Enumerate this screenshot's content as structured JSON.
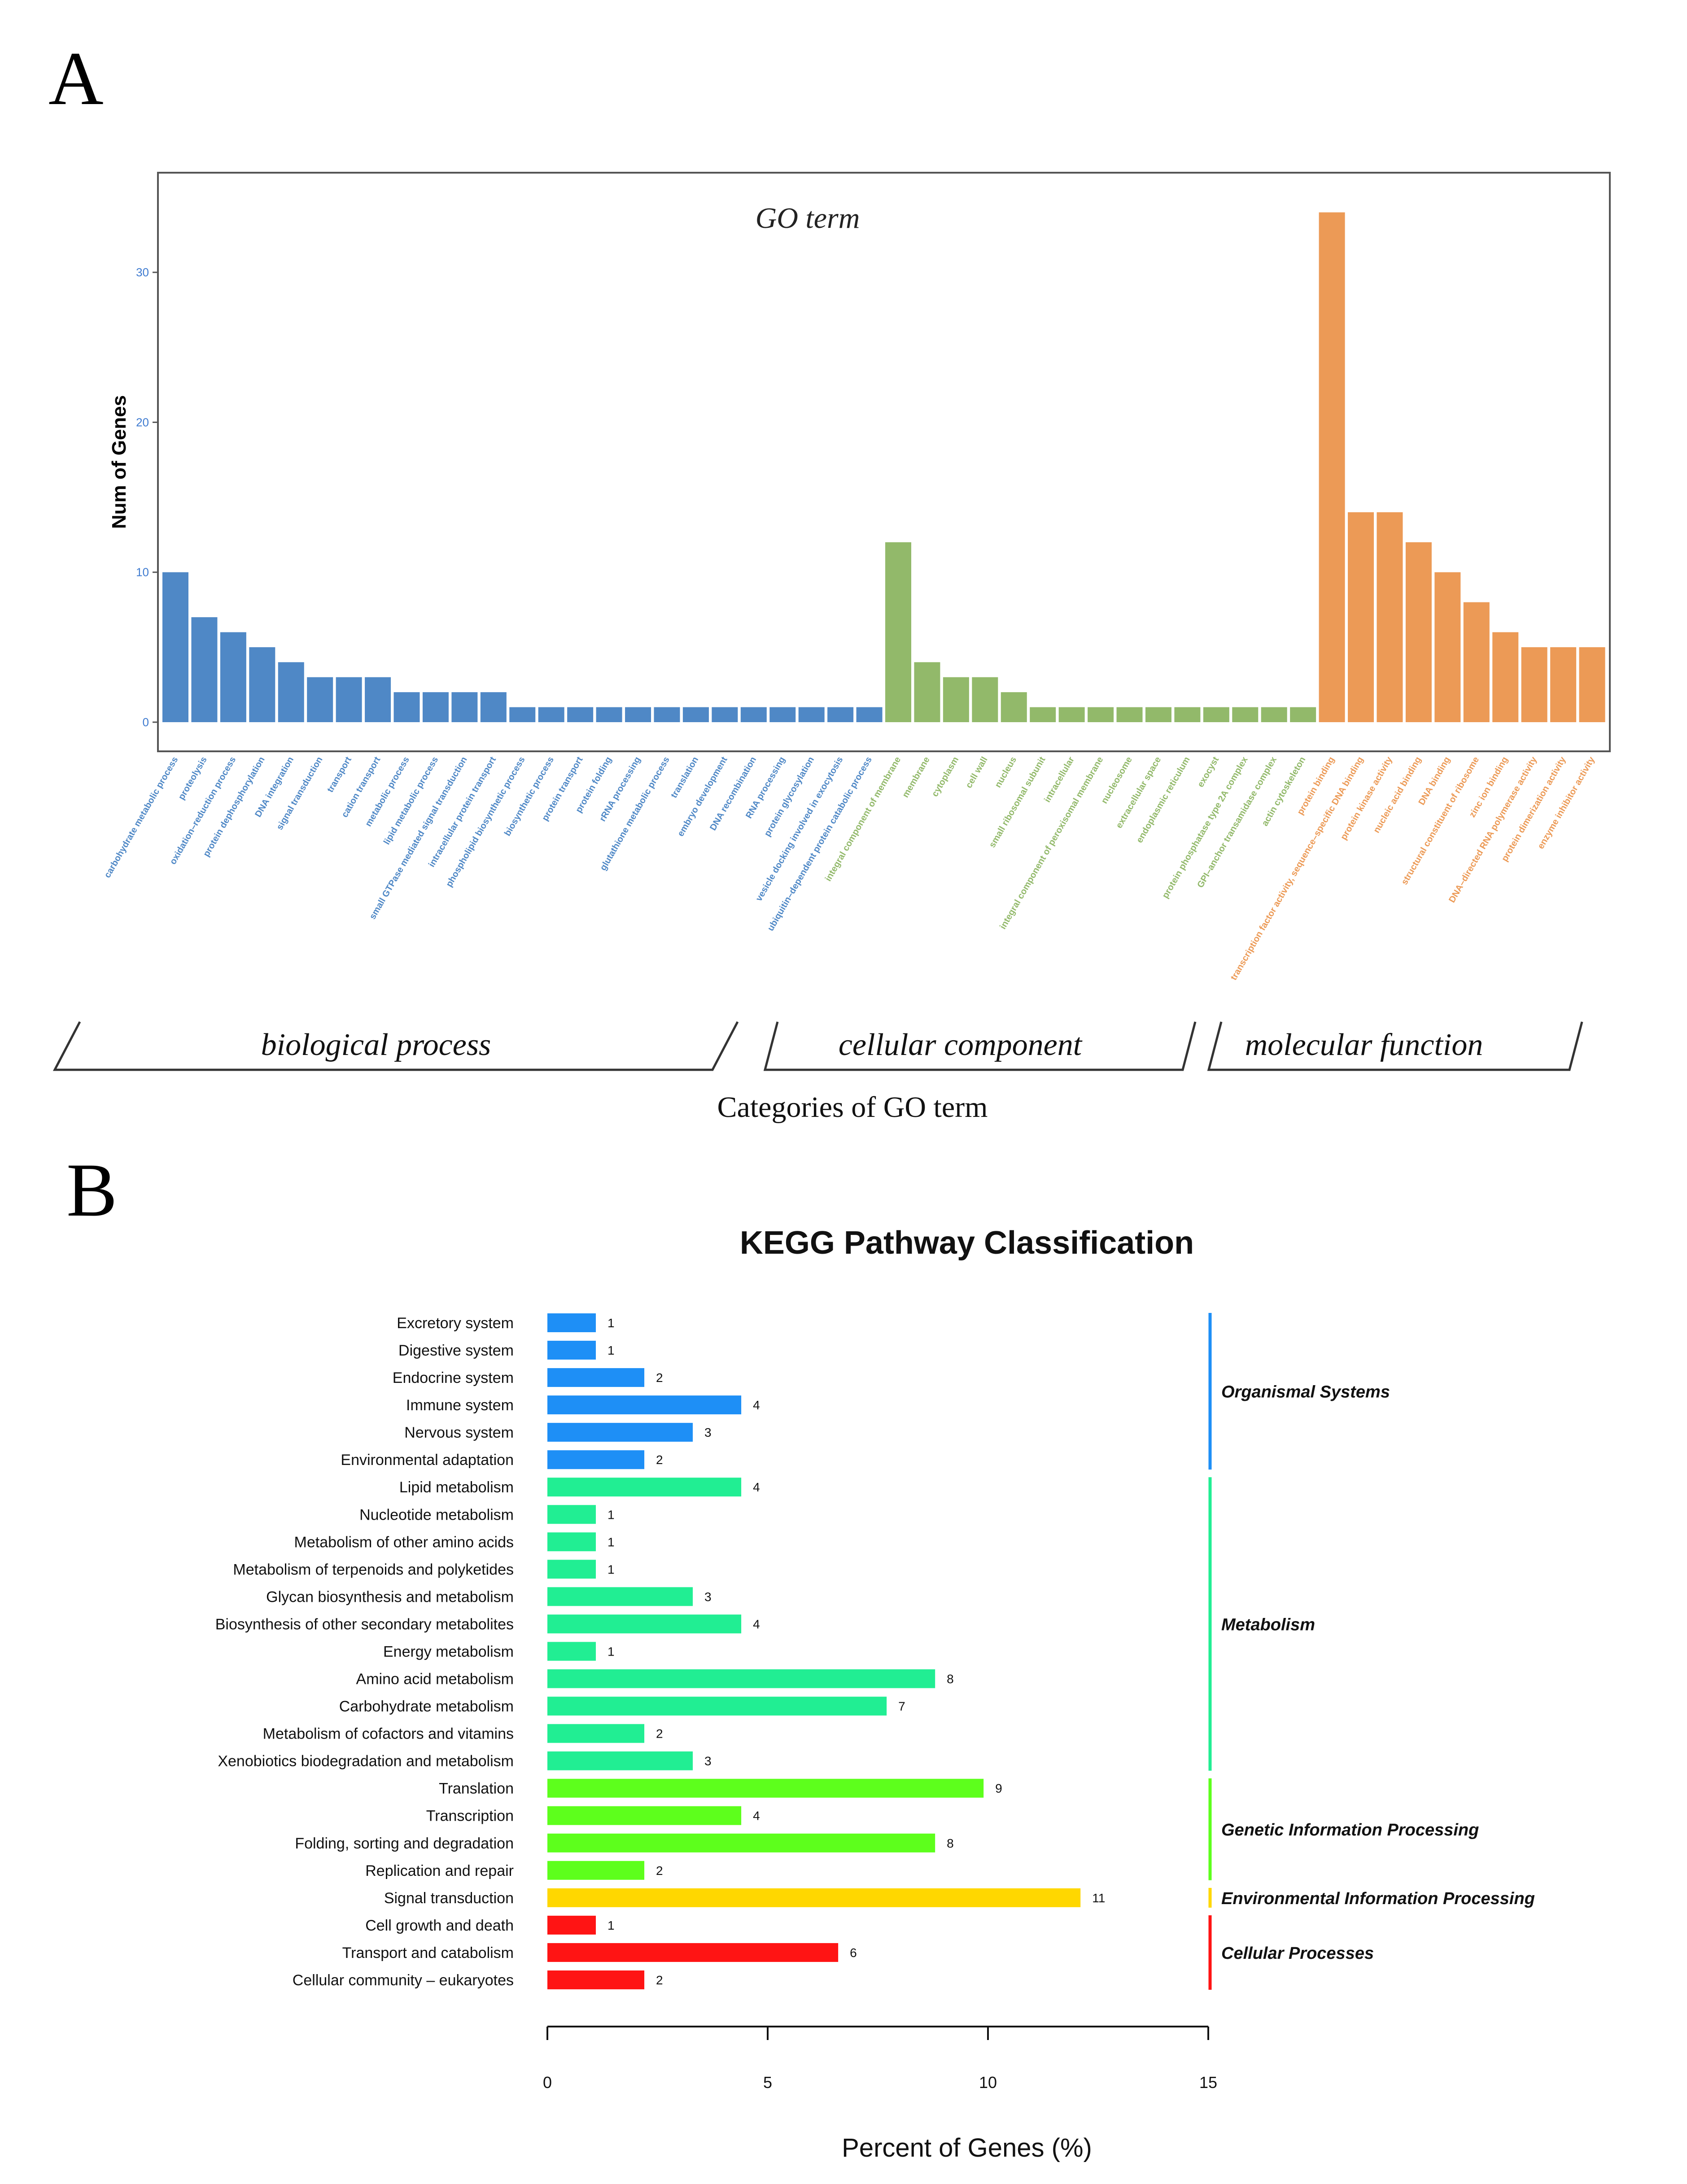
{
  "panel_a": {
    "label": "A",
    "chart_data": {
      "type": "bar",
      "title": "GO term",
      "xlabel": "Categories of GO term",
      "ylabel": "Num of Genes",
      "ylim": [
        0,
        35
      ],
      "yticks": [
        0,
        10,
        20,
        30
      ],
      "grid": false,
      "groups": [
        {
          "name": "biological process",
          "color": "#4f88c6",
          "categories": [
            "carbohydrate metabolic process",
            "proteolysis",
            "oxidation–reduction process",
            "protein dephosphorylation",
            "DNA integration",
            "signal transduction",
            "transport",
            "cation transport",
            "metabolic process",
            "lipid metabolic process",
            "small GTPase mediated signal transduction",
            "intracellular protein transport",
            "phospholipid biosynthetic process",
            "biosynthetic process",
            "protein transport",
            "protein folding",
            "rRNA processing",
            "glutathione metabolic process",
            "translation",
            "embryo development",
            "DNA recombination",
            "RNA processing",
            "protein glycosylation",
            "vesicle docking involved in exocytosis",
            "ubiquitin–dependent protein catabolic process"
          ],
          "values": [
            10,
            7,
            6,
            5,
            4,
            3,
            3,
            3,
            2,
            2,
            2,
            2,
            1,
            1,
            1,
            1,
            1,
            1,
            1,
            1,
            1,
            1,
            1,
            1,
            1
          ]
        },
        {
          "name": "cellular component",
          "color": "#92b96a",
          "categories": [
            "integral component of membrane",
            "membrane",
            "cytoplasm",
            "cell wall",
            "nucleus",
            "small ribosomal subunit",
            "intracellular",
            "integral component of peroxisomal membrane",
            "nucleosome",
            "extracellular space",
            "endoplasmic reticulum",
            "exocyst",
            "protein phosphatase type 2A complex",
            "GPI–anchor transamidase complex",
            "actin cytoskeleton"
          ],
          "values": [
            12,
            4,
            3,
            3,
            2,
            1,
            1,
            1,
            1,
            1,
            1,
            1,
            1,
            1,
            1
          ]
        },
        {
          "name": "molecular function",
          "color": "#ec9a56",
          "categories": [
            "protein binding",
            "transcription factor activity, sequence–specific DNA binding",
            "protein kinase activity",
            "nucleic acid binding",
            "DNA binding",
            "structural constituent of ribosome",
            "zinc ion binding",
            "DNA–directed RNA polymerase activity",
            "protein dimerization activity",
            "enzyme inhibitor activity"
          ],
          "values": [
            34,
            14,
            14,
            12,
            10,
            8,
            6,
            5,
            5,
            5
          ]
        }
      ]
    }
  },
  "panel_b": {
    "label": "B",
    "chart_data": {
      "type": "bar",
      "orientation": "horizontal",
      "title": "KEGG Pathway Classification",
      "xlabel": "Percent of Genes (%)",
      "xlim": [
        0,
        15
      ],
      "xticks": [
        0,
        5,
        10,
        15
      ],
      "grid": false,
      "categories": [
        "Excretory system",
        "Digestive system",
        "Endocrine system",
        "Immune system",
        "Nervous system",
        "Environmental adaptation",
        "Lipid metabolism",
        "Nucleotide metabolism",
        "Metabolism of other amino acids",
        "Metabolism of terpenoids and polyketides",
        "Glycan biosynthesis and metabolism",
        "Biosynthesis of other secondary metabolites",
        "Energy metabolism",
        "Amino acid metabolism",
        "Carbohydrate metabolism",
        "Metabolism of cofactors and vitamins",
        "Xenobiotics biodegradation and metabolism",
        "Translation",
        "Transcription",
        "Folding, sorting and degradation",
        "Replication and repair",
        "Signal transduction",
        "Cell growth and death",
        "Transport and catabolism",
        "Cellular community – eukaryotes"
      ],
      "values": [
        1.1,
        1.1,
        2.2,
        4.4,
        3.3,
        2.2,
        4.4,
        1.1,
        1.1,
        1.1,
        3.3,
        4.4,
        1.1,
        8.8,
        7.7,
        2.2,
        3.3,
        9.9,
        4.4,
        8.8,
        2.2,
        12.1,
        1.1,
        6.6,
        2.2
      ],
      "counts": [
        1,
        1,
        2,
        4,
        3,
        2,
        4,
        1,
        1,
        1,
        3,
        4,
        1,
        8,
        7,
        2,
        3,
        9,
        4,
        8,
        2,
        11,
        1,
        6,
        2
      ],
      "groups": [
        {
          "name": "Organismal Systems",
          "color": "#1e8ff6",
          "start": 0,
          "count": 6
        },
        {
          "name": "Metabolism",
          "color": "#21ee93",
          "start": 6,
          "count": 11
        },
        {
          "name": "Genetic Information Processing",
          "color": "#5dff1c",
          "start": 17,
          "count": 4
        },
        {
          "name": "Environmental Information Processing",
          "color": "#ffd700",
          "start": 21,
          "count": 1
        },
        {
          "name": "Cellular Processes",
          "color": "#ff1414",
          "start": 22,
          "count": 3
        }
      ]
    }
  }
}
